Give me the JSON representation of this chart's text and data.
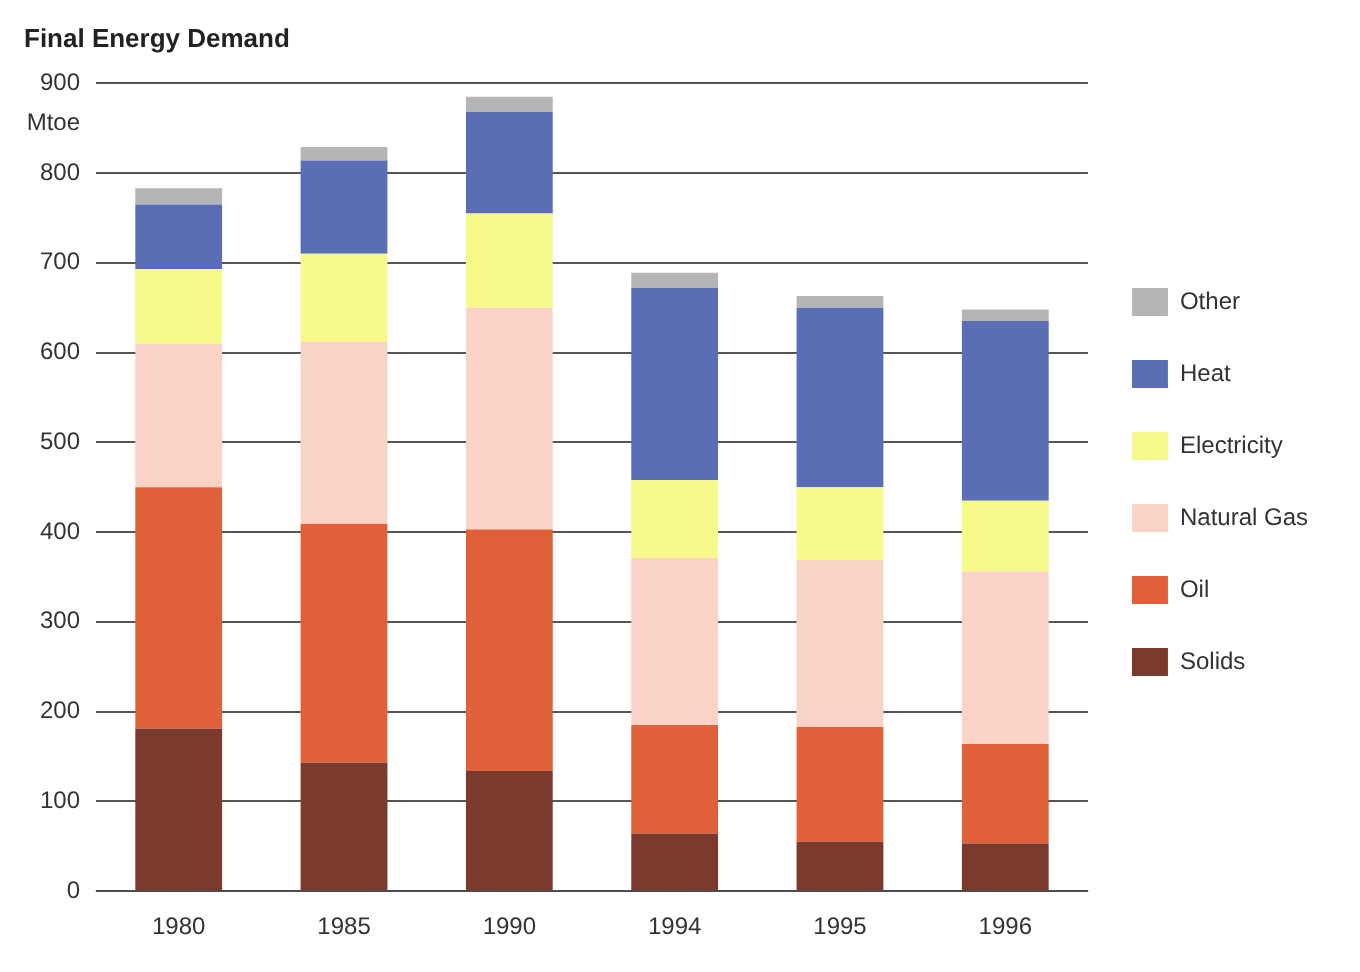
{
  "chart_data": {
    "type": "bar",
    "title": "Final Energy Demand",
    "ylabel": "Mtoe",
    "stacked": true,
    "categories": [
      "1980",
      "1985",
      "1990",
      "1994",
      "1995",
      "1996"
    ],
    "series": [
      {
        "name": "Solids",
        "color": "#7a3b2e",
        "values": [
          181,
          143,
          134,
          64,
          55,
          53
        ]
      },
      {
        "name": "Oil",
        "color": "#e0603a",
        "values": [
          269,
          266,
          269,
          121,
          128,
          111
        ]
      },
      {
        "name": "Natural Gas",
        "color": "#fbd3c6",
        "values": [
          160,
          203,
          247,
          186,
          186,
          192
        ]
      },
      {
        "name": "Electricity",
        "color": "#f5fa8a",
        "values": [
          83,
          98,
          105,
          87,
          81,
          79
        ]
      },
      {
        "name": "Heat",
        "color": "#5b6eb5",
        "values": [
          72,
          104,
          113,
          214,
          200,
          200
        ]
      },
      {
        "name": "Other",
        "color": "#b5b5b5",
        "values": [
          18,
          15,
          17,
          17,
          13,
          13
        ]
      }
    ],
    "ylim": [
      0,
      900
    ],
    "yticks": [
      0,
      100,
      200,
      300,
      400,
      500,
      600,
      700,
      800,
      900
    ],
    "grid": "y",
    "legend": "right"
  }
}
